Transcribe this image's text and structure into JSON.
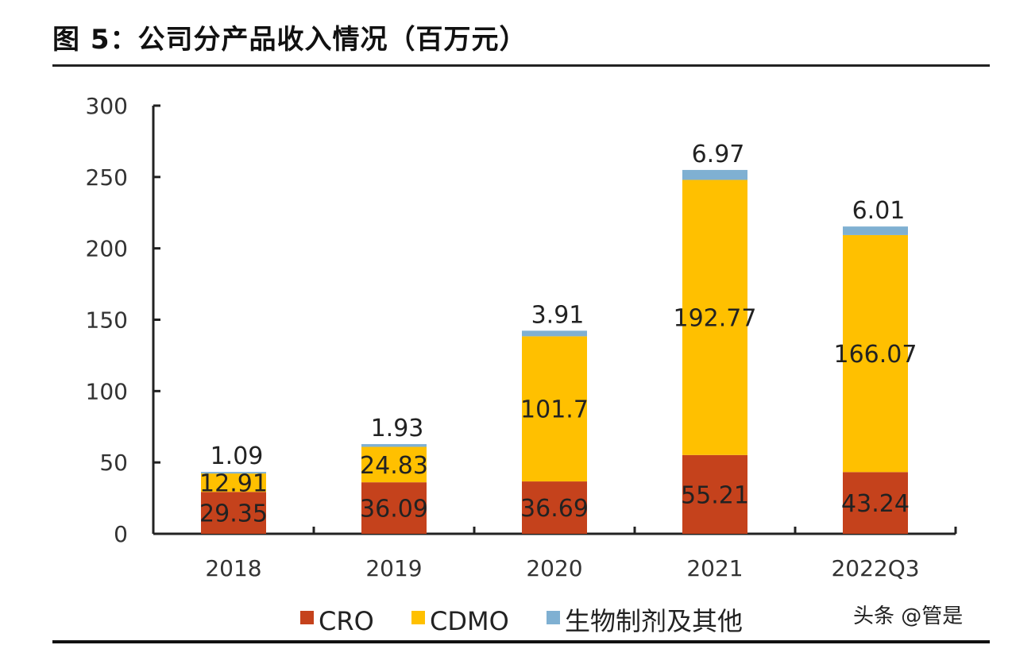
{
  "title": "图 5：公司分产品收入情况（百万元）",
  "watermark": "头条 @管是",
  "chart_data": {
    "type": "bar",
    "stacked": true,
    "title": "图 5：公司分产品收入情况（百万元）",
    "categories": [
      "2018",
      "2019",
      "2020",
      "2021",
      "2022Q3"
    ],
    "series": [
      {
        "name": "CRO",
        "color": "#C5421C",
        "values": [
          29.35,
          36.09,
          36.69,
          55.21,
          43.24
        ]
      },
      {
        "name": "CDMO",
        "color": "#FFC000",
        "values": [
          12.91,
          24.83,
          101.7,
          192.77,
          166.07
        ]
      },
      {
        "name": "生物制剂及其他",
        "color": "#7FB0D2",
        "values": [
          1.09,
          1.93,
          3.91,
          6.97,
          6.01
        ]
      }
    ],
    "data_labels": [
      [
        "29.35",
        "36.09",
        "36.69",
        "55.21",
        "43.24"
      ],
      [
        "12.91",
        "24.83",
        "101.7",
        "192.77",
        "166.07"
      ],
      [
        "1.09",
        "1.93",
        "3.91",
        "6.97",
        "6.01"
      ]
    ],
    "ylim": [
      0,
      300
    ],
    "yticks": [
      "0",
      "50",
      "100",
      "150",
      "200",
      "250",
      "300"
    ],
    "grid": false,
    "legend": "bottom"
  }
}
